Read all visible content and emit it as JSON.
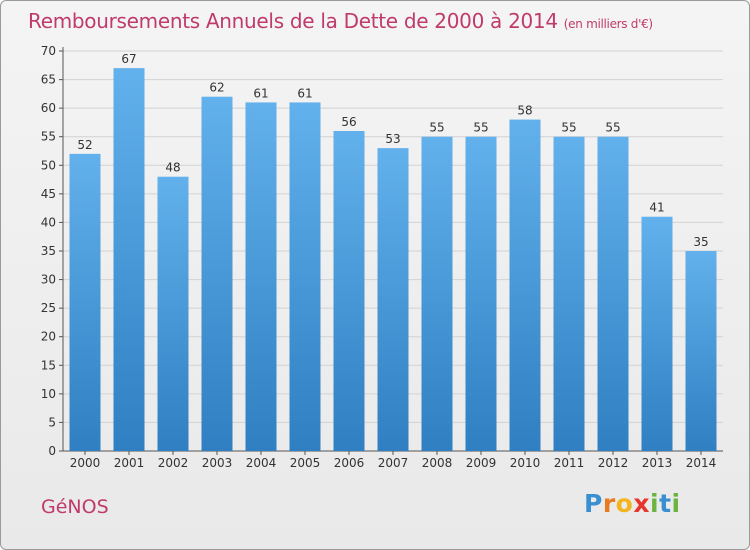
{
  "chart_data": {
    "type": "bar",
    "title": "Remboursements Annuels de la Dette de 2000 à 2014",
    "subtitle": "(en milliers d'€)",
    "categories": [
      "2000",
      "2001",
      "2002",
      "2003",
      "2004",
      "2005",
      "2006",
      "2007",
      "2008",
      "2009",
      "2010",
      "2011",
      "2012",
      "2013",
      "2014"
    ],
    "values": [
      52,
      67,
      48,
      62,
      61,
      61,
      56,
      53,
      55,
      55,
      58,
      55,
      55,
      41,
      35
    ],
    "ylim": [
      0,
      70
    ],
    "yticks": [
      0,
      5,
      10,
      15,
      20,
      25,
      30,
      35,
      40,
      45,
      50,
      55,
      60,
      65,
      70
    ],
    "xlabel": "",
    "ylabel": "",
    "grid": true,
    "bar_color": "#4a98d6"
  },
  "footer": {
    "commune": "GéNOS",
    "brand_letters": [
      {
        "ch": "P",
        "color": "#3a8fd1"
      },
      {
        "ch": "r",
        "color": "#e87b1e"
      },
      {
        "ch": "o",
        "color": "#f2b51c"
      },
      {
        "ch": "x",
        "color": "#e8342a"
      },
      {
        "ch": "i",
        "color": "#6cb33f"
      },
      {
        "ch": "t",
        "color": "#3a8fd1"
      },
      {
        "ch": "i",
        "color": "#6cb33f"
      }
    ]
  }
}
